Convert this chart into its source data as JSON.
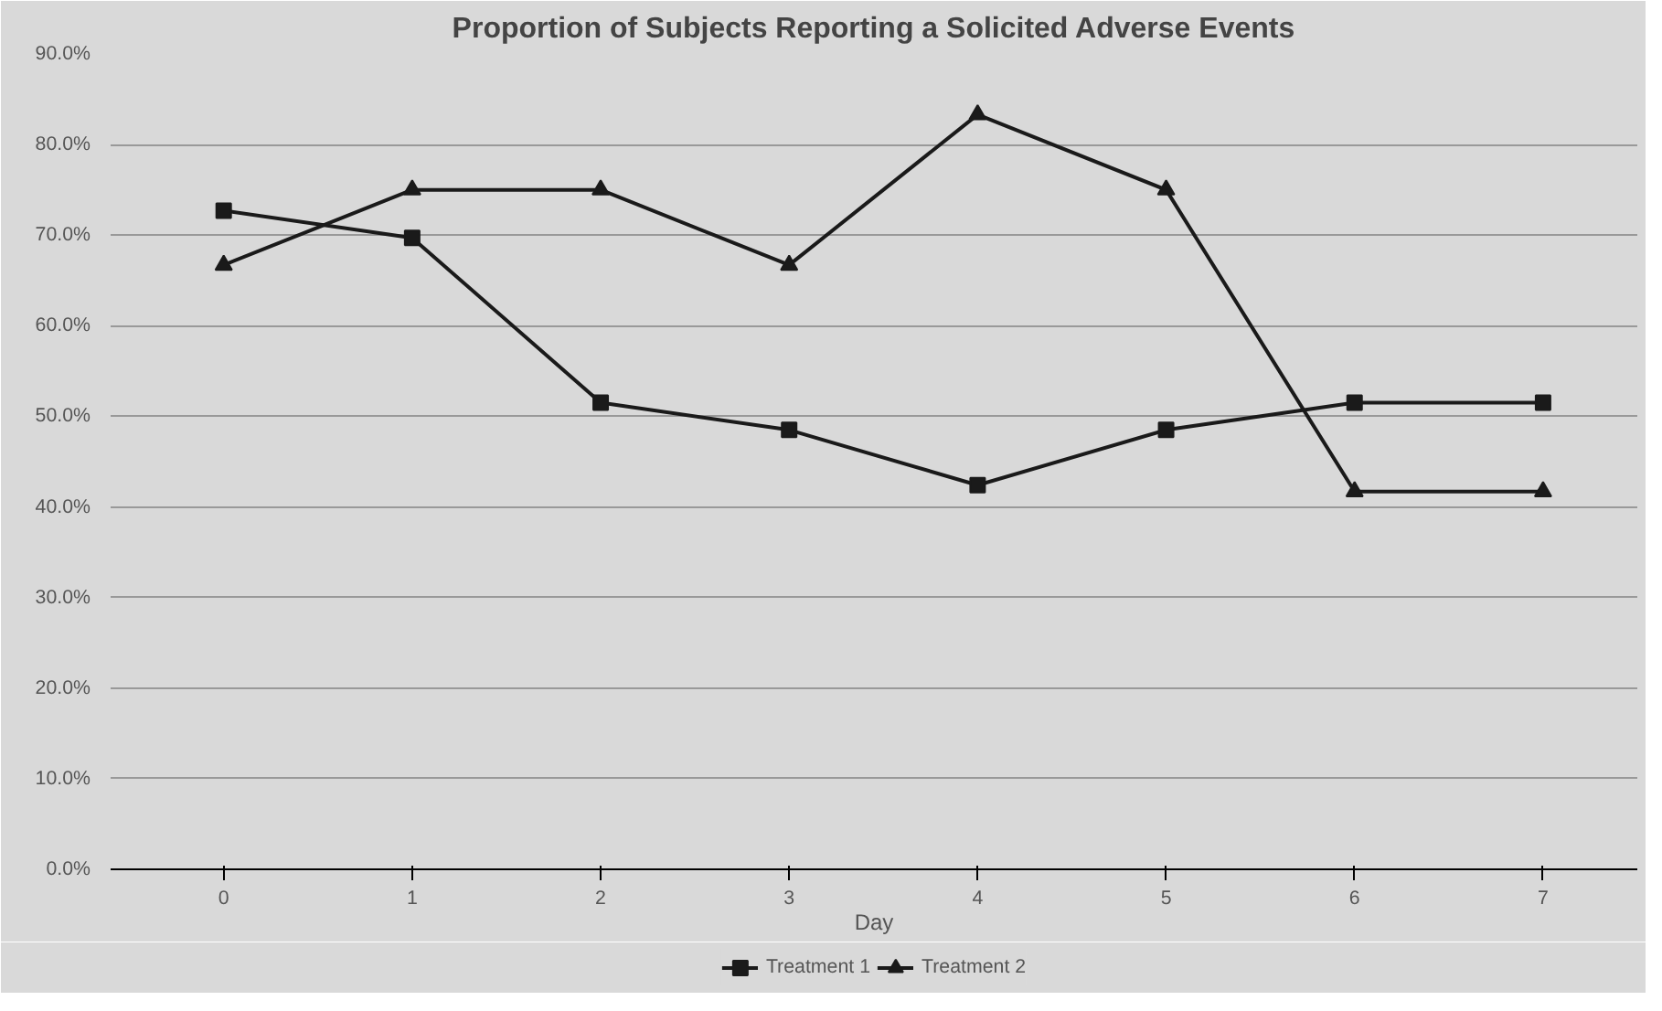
{
  "chart_data": {
    "type": "line",
    "title": "Proportion of Subjects Reporting a Solicited Adverse Events",
    "xlabel": "Day",
    "categories": [
      "0",
      "1",
      "2",
      "3",
      "4",
      "5",
      "6",
      "7"
    ],
    "series": [
      {
        "name": "Treatment 1",
        "color": "#1a1a1a",
        "marker": "square",
        "values": [
          72.7,
          69.7,
          51.5,
          48.5,
          42.4,
          48.5,
          51.5,
          51.5
        ]
      },
      {
        "name": "Treatment 2",
        "color": "#1a1a1a",
        "marker": "triangle",
        "values": [
          66.7,
          75.0,
          75.0,
          66.7,
          83.3,
          75.0,
          41.7,
          41.7
        ]
      }
    ],
    "ylim": [
      0,
      90
    ],
    "yticks": [
      {
        "value": 0,
        "label": "0.0%"
      },
      {
        "value": 10,
        "label": "10.0%"
      },
      {
        "value": 20,
        "label": "20.0%"
      },
      {
        "value": 30,
        "label": "30.0%"
      },
      {
        "value": 40,
        "label": "40.0%"
      },
      {
        "value": 50,
        "label": "50.0%"
      },
      {
        "value": 60,
        "label": "60.0%"
      },
      {
        "value": 70,
        "label": "70.0%"
      },
      {
        "value": 80,
        "label": "80.0%"
      },
      {
        "value": 90,
        "label": "90.0%"
      }
    ],
    "grid": "y",
    "legend": "bottom",
    "line_style": "solid"
  }
}
